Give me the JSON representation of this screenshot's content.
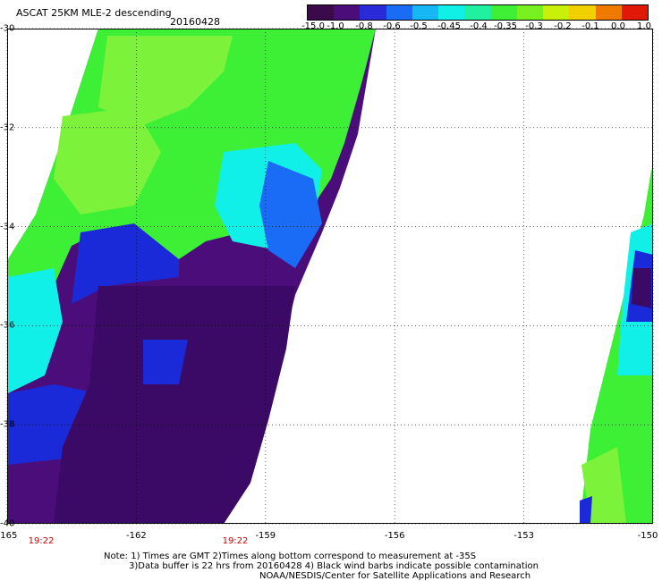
{
  "header": {
    "title": "ASCAT 25KM MLE-2 descending",
    "date": "20160428"
  },
  "colorbar": {
    "labels": [
      "-15.0",
      "-1.0",
      "-0.8",
      "-0.6",
      "-0.5",
      "-0.45",
      "-0.4",
      "-0.35",
      "-0.3",
      "-0.2",
      "-0.1",
      "0.0",
      "1.0"
    ],
    "colors": [
      "#3a0a4a",
      "#4b0d7a",
      "#2a2ad8",
      "#1a6bf5",
      "#17b7f5",
      "#10f0e8",
      "#20f0a0",
      "#3ef035",
      "#78f020",
      "#c8f00a",
      "#f0d000",
      "#f07a00",
      "#e01808"
    ]
  },
  "axes": {
    "lat_ticks": [
      "-30",
      "-32",
      "-34",
      "-36",
      "-38",
      "-40"
    ],
    "lon_ticks": [
      "-165",
      "-162",
      "-159",
      "-156",
      "-153",
      "-150"
    ],
    "lat_range": [
      -40,
      -30
    ],
    "lon_range": [
      -165,
      -150
    ]
  },
  "times": [
    "19:22",
    "19:22"
  ],
  "notes": [
    "Note: 1) Times are GMT 2)Times along bottom correspond to measurement at -35S",
    "3)Data buffer is 22 hrs from 20160428 4) Black wind barbs indicate possible contamination",
    "NOAA/NESDIS/Center for Satellite Applications and Research"
  ],
  "map_colors": {
    "green": "#3ef035",
    "light_green": "#7cf23a",
    "cyan": "#10f0e8",
    "light_blue": "#17b7f5",
    "blue": "#1a2ad8",
    "dark_purple": "#3a0a66",
    "purple": "#4b0d7a"
  }
}
